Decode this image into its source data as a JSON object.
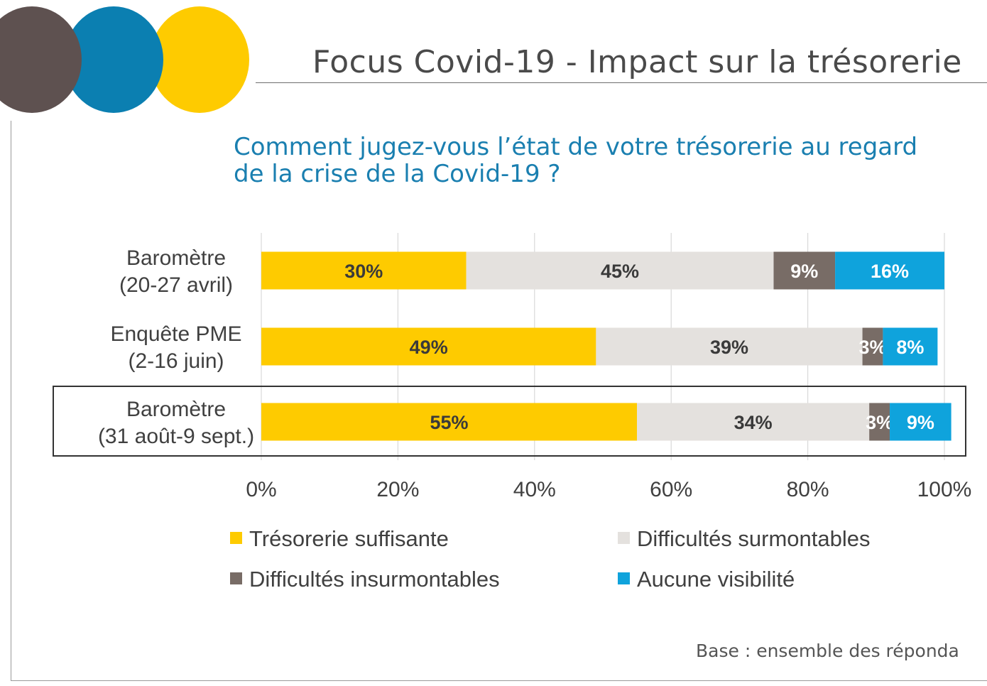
{
  "header": {
    "title": "Focus Covid-19 - Impact sur la trésorerie",
    "circle_colors": [
      "#5e5150",
      "#0b7fb1",
      "#fecb00"
    ]
  },
  "question": {
    "line1": "Comment jugez-vous l’état de votre trésorerie au regard",
    "line2": "de la crise de la Covid-19 ?"
  },
  "footer": {
    "base_note": "Base :  ensemble des réponda"
  },
  "chart_data": {
    "type": "bar",
    "orientation": "horizontal",
    "stacked": true,
    "categories": [
      [
        "Baromètre",
        "(20-27 avril)"
      ],
      [
        "Enquête PME",
        "(2-16 juin)"
      ],
      [
        "Baromètre",
        "(31 août-9 sept.)"
      ]
    ],
    "highlighted_category_index": 2,
    "series": [
      {
        "name": "Trésorerie suffisante",
        "color": "#fecb00",
        "label_color": "#3a3a3a",
        "values": [
          30,
          49,
          55
        ]
      },
      {
        "name": "Difficultés surmontables",
        "color": "#e4e1de",
        "label_color": "#3a3a3a",
        "values": [
          45,
          39,
          34
        ]
      },
      {
        "name": "Difficultés insurmontables",
        "color": "#786c66",
        "label_color": "#ffffff",
        "values": [
          9,
          3,
          3
        ]
      },
      {
        "name": "Aucune visibilité",
        "color": "#0fa3dc",
        "label_color": "#ffffff",
        "values": [
          16,
          8,
          9
        ]
      }
    ],
    "data_labels": [
      [
        "30%",
        "45%",
        "9%",
        "16%"
      ],
      [
        "49%",
        "39%",
        "3%",
        "8%"
      ],
      [
        "55%",
        "34%",
        "3%",
        "9%"
      ]
    ],
    "xlim": [
      0,
      100
    ],
    "xticks": [
      0,
      20,
      40,
      60,
      80,
      100
    ],
    "xtick_labels": [
      "0%",
      "20%",
      "40%",
      "60%",
      "80%",
      "100%"
    ],
    "grid": "vertical",
    "legend_position": "bottom",
    "xlabel": "",
    "ylabel": ""
  }
}
